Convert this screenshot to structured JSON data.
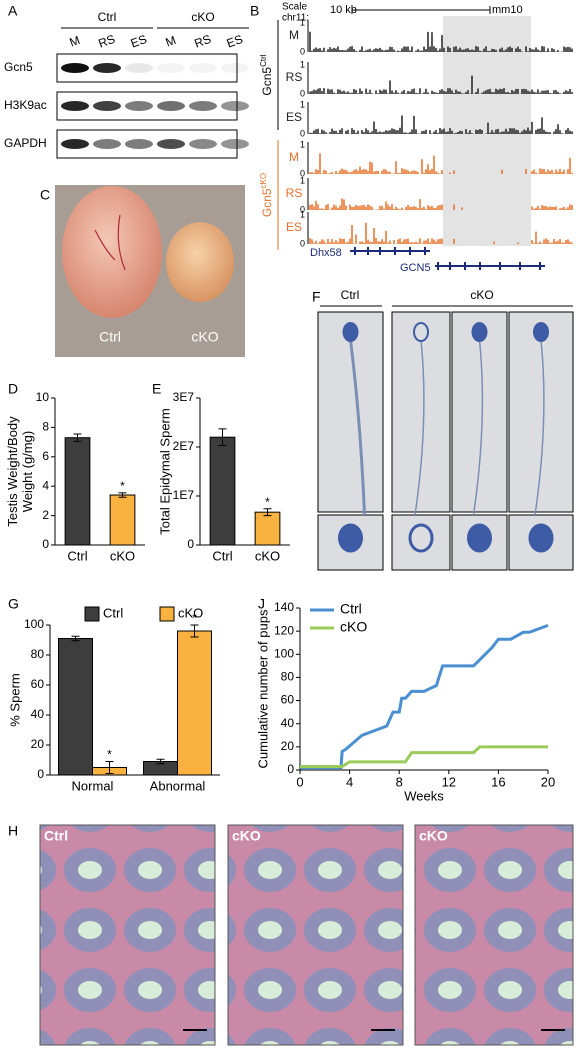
{
  "blot": {
    "label": "A",
    "groups": [
      "Ctrl",
      "cKO"
    ],
    "lanes": [
      "M",
      "RS",
      "ES",
      "M",
      "RS",
      "ES"
    ],
    "rows": [
      "Gcn5",
      "H3K9ac",
      "GAPDH"
    ]
  },
  "tracks": {
    "label": "B",
    "scale": "Scale",
    "chrom": "chr11:",
    "scale_bar": "10 kb",
    "assembly": "mm10",
    "ctrl_group": {
      "name": "Gcn5",
      "sup": "Ctrl"
    },
    "ko_group": {
      "name": "Gcn5",
      "sup": "cKO"
    },
    "rows": [
      {
        "name": "M",
        "max": 1,
        "min": 0
      },
      {
        "name": "RS",
        "max": 1,
        "min": 0
      },
      {
        "name": "ES",
        "max": 1,
        "min": 0
      },
      {
        "name": "M",
        "max": 1,
        "min": 0
      },
      {
        "name": "RS",
        "max": 1,
        "min": 0
      },
      {
        "name": "ES",
        "max": 1,
        "min": 0
      }
    ],
    "genes": [
      "Dhx58",
      "GCN5"
    ]
  },
  "photo": {
    "label": "C",
    "left": "Ctrl",
    "right": "cKO"
  },
  "sperm": {
    "label": "F",
    "left": "Ctrl",
    "right": "cKO"
  },
  "histology": {
    "label": "H",
    "panels": [
      "Ctrl",
      "cKO",
      "cKO"
    ]
  },
  "chart_data": [
    {
      "type": "bar",
      "label": "D",
      "ylabel": [
        "Testis Weight/Body",
        "Weight (g/mg)"
      ],
      "categories": [
        "Ctrl",
        "cKO"
      ],
      "values": [
        7.3,
        3.4
      ],
      "errors": [
        0.25,
        0.15
      ],
      "colors": [
        "#3d3d3d",
        "#f9b13f"
      ],
      "annotations": [
        null,
        "*"
      ],
      "ylim": [
        0,
        10
      ],
      "yticks": [
        0,
        2,
        4,
        6,
        8,
        10
      ]
    },
    {
      "type": "bar",
      "label": "E",
      "ylabel": [
        "Total Epidymal Sperm"
      ],
      "categories": [
        "Ctrl",
        "cKO"
      ],
      "values": [
        22000000,
        6700000
      ],
      "errors": [
        1700000,
        700000
      ],
      "colors": [
        "#3d3d3d",
        "#f9b13f"
      ],
      "annotations": [
        null,
        "*"
      ],
      "ylim": [
        0,
        30000000
      ],
      "yticks": [
        0,
        {
          "value": 10000000,
          "label": "1E7"
        },
        {
          "value": 20000000,
          "label": "2E7"
        },
        {
          "value": 30000000,
          "label": "3E7"
        }
      ]
    },
    {
      "type": "bar",
      "label": "G",
      "ylabel": [
        "% Sperm"
      ],
      "categories": [
        "Normal",
        "Abnormal"
      ],
      "series": [
        {
          "name": "Ctrl",
          "color": "#3d3d3d",
          "values": [
            91,
            9
          ],
          "errors": [
            1.5,
            1.5
          ],
          "annotations": [
            null,
            null
          ]
        },
        {
          "name": "cKO",
          "color": "#f9b13f",
          "values": [
            5,
            96
          ],
          "errors": [
            4,
            4
          ],
          "annotations": [
            "*",
            "*"
          ]
        }
      ],
      "ylim": [
        0,
        100
      ],
      "yticks": [
        0,
        20,
        40,
        60,
        80,
        100
      ]
    },
    {
      "type": "line",
      "label": "J",
      "ylabel": [
        "Cumulative number of pups"
      ],
      "xlabel": "Weeks",
      "series": [
        {
          "name": "Ctrl",
          "color": "#4a8fcf",
          "x": [
            0,
            3.3,
            3.4,
            3.7,
            5,
            7,
            7.5,
            8,
            8.2,
            8.5,
            9,
            10,
            11,
            11.5,
            12,
            14,
            15.5,
            16,
            17,
            18,
            18.5,
            20
          ],
          "values": [
            2,
            2,
            16,
            18,
            30,
            38,
            50,
            50,
            62,
            62,
            68,
            68,
            73,
            90,
            90,
            90,
            106,
            113,
            113,
            119,
            119,
            125
          ]
        },
        {
          "name": "cKO",
          "color": "#9ccb5b",
          "x": [
            0,
            3.4,
            4,
            8.5,
            9,
            14,
            14.5,
            20
          ],
          "values": [
            3,
            3,
            7,
            7,
            15,
            15,
            20,
            20
          ]
        }
      ],
      "xlim": [
        0,
        20
      ],
      "xticks": [
        0,
        4,
        8,
        12,
        16,
        20
      ],
      "ylim": [
        0,
        140
      ],
      "yticks": [
        0,
        20,
        40,
        60,
        80,
        100,
        120,
        140
      ]
    }
  ]
}
